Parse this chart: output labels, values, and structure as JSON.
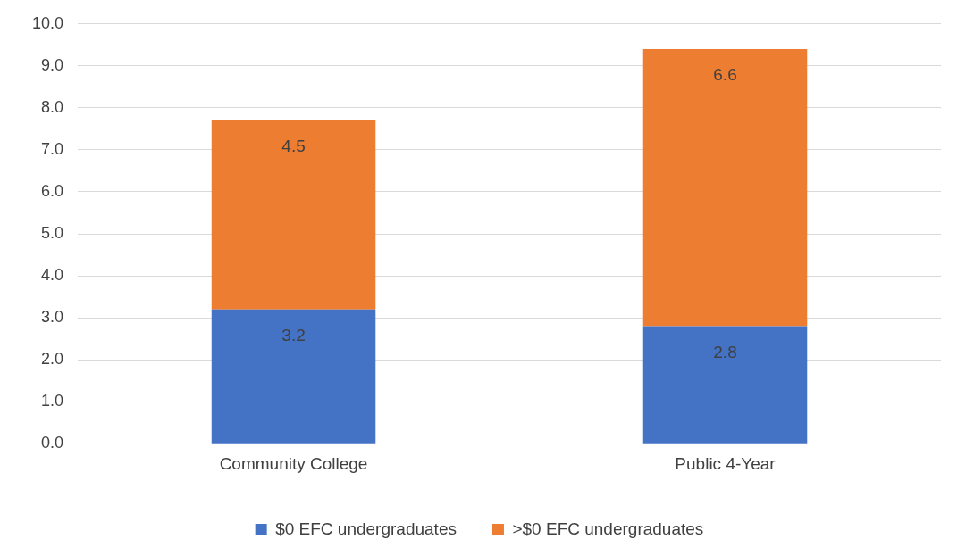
{
  "chart_data": {
    "type": "bar",
    "stacked": true,
    "categories": [
      "Community College",
      "Public 4-Year"
    ],
    "series": [
      {
        "name": "$0 EFC undergraduates",
        "color": "#4472c4",
        "values": [
          3.2,
          2.8
        ]
      },
      {
        "name": ">$0 EFC undergraduates",
        "color": "#ed7d31",
        "values": [
          4.5,
          6.6
        ]
      }
    ],
    "ylim": [
      0,
      10
    ],
    "yticks": [
      {
        "value": 0,
        "label": "0.0"
      },
      {
        "value": 1,
        "label": "1.0"
      },
      {
        "value": 2,
        "label": "2.0"
      },
      {
        "value": 3,
        "label": "3.0"
      },
      {
        "value": 4,
        "label": "4.0"
      },
      {
        "value": 5,
        "label": "5.0"
      },
      {
        "value": 6,
        "label": "6.0"
      },
      {
        "value": 7,
        "label": "7.0"
      },
      {
        "value": 8,
        "label": "8.0"
      },
      {
        "value": 9,
        "label": "9.0"
      },
      {
        "value": 10,
        "label": "10.0"
      }
    ],
    "grid": "y",
    "legend": "bottom",
    "data_labels": true
  }
}
